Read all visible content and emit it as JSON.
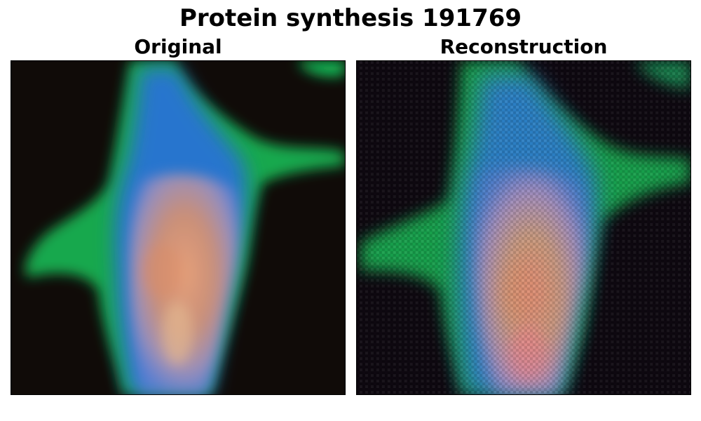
{
  "figure": {
    "title": "Protein synthesis 191769"
  },
  "panels": [
    {
      "title": "Original"
    },
    {
      "title": "Reconstruction"
    }
  ],
  "colors": {
    "background": "#100b08",
    "cytoplasm_green": "#19c85a",
    "cell_blue": "#2a6ee0",
    "nucleus_peach": "#d89a70",
    "nucleus_pink": "#e07a9a"
  }
}
